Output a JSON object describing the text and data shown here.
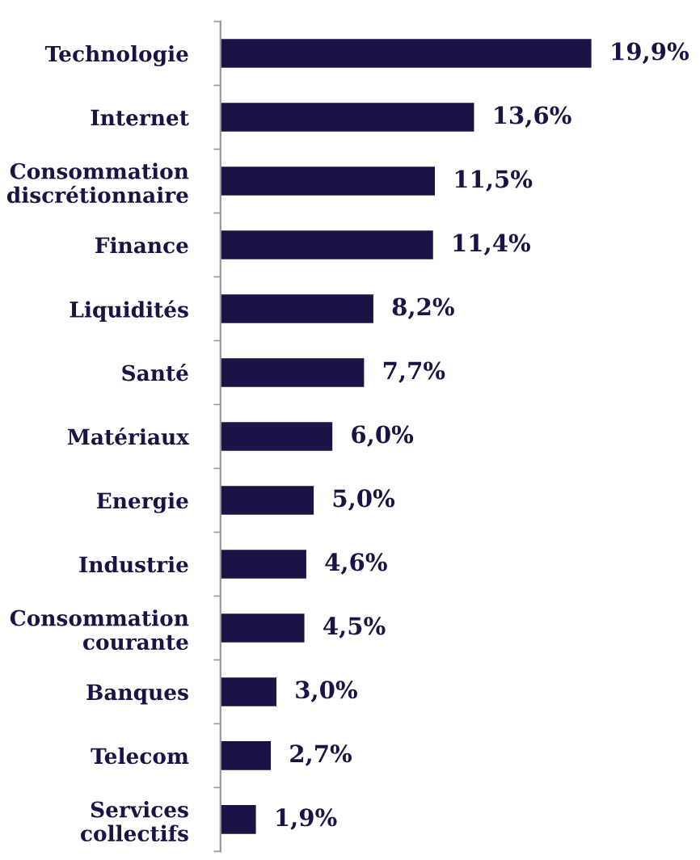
{
  "chart_data": {
    "type": "bar",
    "orientation": "horizontal",
    "categories": [
      "Technologie",
      "Internet",
      "Consommation\ndiscrétionnaire",
      "Finance",
      "Liquidités",
      "Santé",
      "Matériaux",
      "Energie",
      "Industrie",
      "Consommation\ncourante",
      "Banques",
      "Telecom",
      "Services\ncollectifs"
    ],
    "values": [
      19.9,
      13.6,
      11.5,
      11.4,
      8.2,
      7.7,
      6.0,
      5.0,
      4.6,
      4.5,
      3.0,
      2.7,
      1.9
    ],
    "value_labels": [
      "19,9%",
      "13,6%",
      "11,5%",
      "11,4%",
      "8,2%",
      "7,7%",
      "6,0%",
      "5,0%",
      "4,6%",
      "4,5%",
      "3,0%",
      "2,7%",
      "1,9%"
    ],
    "color": "#1a1446",
    "grid": false,
    "legend": false
  }
}
